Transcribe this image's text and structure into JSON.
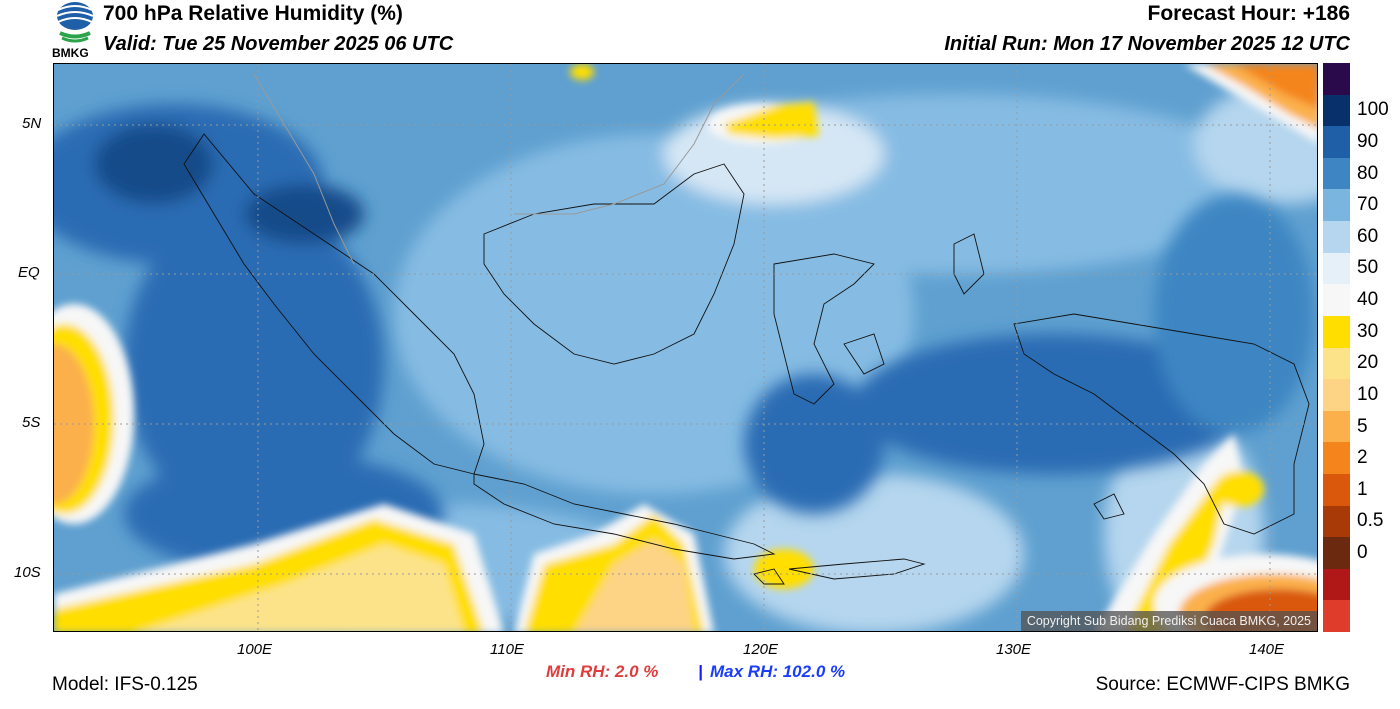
{
  "header": {
    "title": "700 hPa Relative Humidity (%)",
    "valid": "Valid: Tue 25 November 2025 06 UTC",
    "forecast_hour": "Forecast Hour: +186",
    "initial_run": "Initial Run: Mon 17 November 2025 12 UTC",
    "logo_text": "BMKG"
  },
  "map": {
    "lat_labels": [
      "5N",
      "EQ",
      "5S",
      "10S"
    ],
    "lon_labels": [
      "100E",
      "110E",
      "120E",
      "130E",
      "140E"
    ],
    "copyright": "Copyright Sub Bidang Prediksi Cuaca BMKG, 2025"
  },
  "colorbar": {
    "labels": [
      "100",
      "90",
      "80",
      "70",
      "60",
      "50",
      "40",
      "30",
      "20",
      "10",
      "5",
      "2",
      "1",
      "0.5",
      "0"
    ],
    "colors": [
      "#2a0a4a",
      "#08306b",
      "#1f5fa8",
      "#3d86c3",
      "#79b5de",
      "#b5d6ee",
      "#e6f0f8",
      "#f7f7f7",
      "#ffde00",
      "#fce38a",
      "#fdd386",
      "#fbb04b",
      "#f4851c",
      "#d9580b",
      "#a73a06",
      "#6b2a10",
      "#b01818",
      "#e03c2c"
    ]
  },
  "stats": {
    "min_label": "Min RH:   2.0 %",
    "separator": "|",
    "max_label": "Max RH: 102.0 %"
  },
  "footer": {
    "model": "Model: IFS-0.125",
    "source": "Source: ECMWF-CIPS BMKG"
  }
}
